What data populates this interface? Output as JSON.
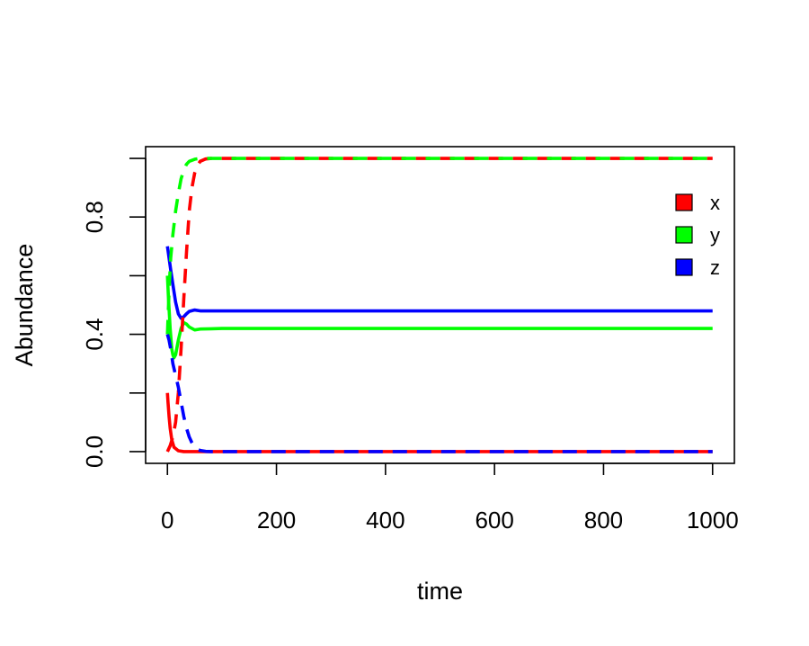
{
  "chart_data": {
    "type": "line",
    "title": "",
    "xlabel": "time",
    "ylabel": "Abundance",
    "xlim": [
      -40,
      1040
    ],
    "ylim": [
      -0.04,
      1.04
    ],
    "x_ticks": [
      0,
      200,
      400,
      600,
      800,
      1000
    ],
    "x_tick_labels": [
      "0",
      "200",
      "400",
      "600",
      "800",
      "1000"
    ],
    "y_ticks": [
      0.0,
      0.2,
      0.4,
      0.6,
      0.8,
      1.0
    ],
    "y_tick_labels": [
      "0.0",
      "",
      "0.4",
      "",
      "0.8",
      ""
    ],
    "grid": false,
    "legend_position": "right",
    "legend": [
      {
        "label": "x",
        "color": "#ff0000"
      },
      {
        "label": "y",
        "color": "#00ff00"
      },
      {
        "label": "z",
        "color": "#0000ff"
      }
    ],
    "series": [
      {
        "color": "#ff0000",
        "style": "solid",
        "x": [
          0,
          1,
          3,
          5,
          8,
          12,
          20,
          30,
          50,
          100,
          300,
          1000
        ],
        "y": [
          0.2,
          0.17,
          0.12,
          0.08,
          0.04,
          0.015,
          0.003,
          0.0,
          0.0,
          0.0,
          0.0,
          0.0
        ]
      },
      {
        "color": "#00ff00",
        "style": "solid",
        "x": [
          0,
          2,
          5,
          8,
          10,
          12,
          15,
          20,
          25,
          30,
          35,
          40,
          50,
          60,
          80,
          100,
          200,
          1000
        ],
        "y": [
          0.6,
          0.52,
          0.42,
          0.35,
          0.33,
          0.32,
          0.33,
          0.38,
          0.42,
          0.44,
          0.435,
          0.425,
          0.415,
          0.418,
          0.419,
          0.42,
          0.42,
          0.42
        ]
      },
      {
        "color": "#0000ff",
        "style": "solid",
        "x": [
          0,
          3,
          6,
          10,
          15,
          20,
          25,
          30,
          35,
          40,
          50,
          60,
          80,
          100,
          200,
          1000
        ],
        "y": [
          0.7,
          0.66,
          0.62,
          0.57,
          0.51,
          0.47,
          0.455,
          0.46,
          0.47,
          0.478,
          0.483,
          0.48,
          0.48,
          0.48,
          0.48,
          0.48
        ]
      },
      {
        "color": "#ff0000",
        "style": "dashed",
        "x": [
          0,
          5,
          10,
          15,
          20,
          25,
          30,
          35,
          40,
          45,
          50,
          55,
          60,
          70,
          80,
          100,
          200,
          1000
        ],
        "y": [
          0.0,
          0.02,
          0.05,
          0.1,
          0.2,
          0.35,
          0.52,
          0.68,
          0.82,
          0.9,
          0.95,
          0.975,
          0.99,
          0.998,
          1.0,
          1.0,
          1.0,
          1.0
        ]
      },
      {
        "color": "#00ff00",
        "style": "dashed",
        "x": [
          0,
          3,
          6,
          10,
          15,
          20,
          25,
          30,
          35,
          40,
          50,
          60,
          80,
          100,
          200,
          1000
        ],
        "y": [
          0.4,
          0.55,
          0.66,
          0.74,
          0.82,
          0.88,
          0.93,
          0.96,
          0.98,
          0.99,
          0.997,
          1.0,
          1.0,
          1.0,
          1.0,
          1.0
        ]
      },
      {
        "color": "#0000ff",
        "style": "dashed",
        "x": [
          0,
          3,
          6,
          10,
          15,
          20,
          25,
          30,
          35,
          40,
          45,
          50,
          55,
          60,
          70,
          80,
          100,
          200,
          1000
        ],
        "y": [
          0.4,
          0.38,
          0.35,
          0.3,
          0.26,
          0.22,
          0.17,
          0.12,
          0.08,
          0.05,
          0.03,
          0.015,
          0.008,
          0.004,
          0.001,
          0.0,
          0.0,
          0.0,
          0.0
        ]
      }
    ]
  }
}
